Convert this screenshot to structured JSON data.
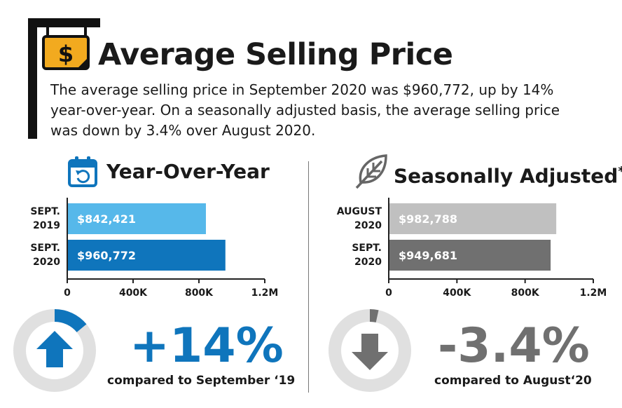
{
  "header": {
    "title": "Average Selling Price",
    "icon": "dollar-sign-icon",
    "description": "The average selling price in September 2020 was $960,772, up by 14% year-over-year. On a seasonally adjusted basis, the average selling price was down by 3.4% over August 2020."
  },
  "colors": {
    "blue_light": "#56b8ea",
    "blue_dark": "#0f75bc",
    "gray_light": "#c0c0c0",
    "gray_dark": "#707070",
    "ring": "#e0e0e0",
    "sign": "#f2aa1f"
  },
  "yoy": {
    "title": "Year-Over-Year",
    "icon": "calendar-icon",
    "change": "+14%",
    "compared": "compared to September ‘19",
    "arrow_icon": "arrow-up-icon",
    "donut_percent": 14
  },
  "sa": {
    "title": "Seasonally Adjusted",
    "asterisk": "*",
    "icon": "leaf-icon",
    "change": "-3.4%",
    "compared": "compared to August‘20",
    "arrow_icon": "arrow-down-icon",
    "donut_percent": 3.4
  },
  "chart_data": [
    {
      "type": "bar",
      "orientation": "horizontal",
      "title": "Year-Over-Year",
      "categories": [
        [
          "SEPT.",
          "2019"
        ],
        [
          "SEPT.",
          "2020"
        ]
      ],
      "values": [
        842421,
        960772
      ],
      "value_labels": [
        "$842,421",
        "$960,772"
      ],
      "colors": [
        "#56b8ea",
        "#0f75bc"
      ],
      "xlim": [
        0,
        1200000
      ],
      "ticks": [
        0,
        400000,
        800000,
        1200000
      ],
      "tick_labels": [
        "0",
        "400K",
        "800K",
        "1.2M"
      ]
    },
    {
      "type": "bar",
      "orientation": "horizontal",
      "title": "Seasonally Adjusted*",
      "categories": [
        [
          "AUGUST",
          "2020"
        ],
        [
          "SEPT.",
          "2020"
        ]
      ],
      "values": [
        982788,
        949681
      ],
      "value_labels": [
        "$982,788",
        "$949,681"
      ],
      "colors": [
        "#c0c0c0",
        "#707070"
      ],
      "xlim": [
        0,
        1200000
      ],
      "ticks": [
        0,
        400000,
        800000,
        1200000
      ],
      "tick_labels": [
        "0",
        "400K",
        "800K",
        "1.2M"
      ]
    }
  ]
}
